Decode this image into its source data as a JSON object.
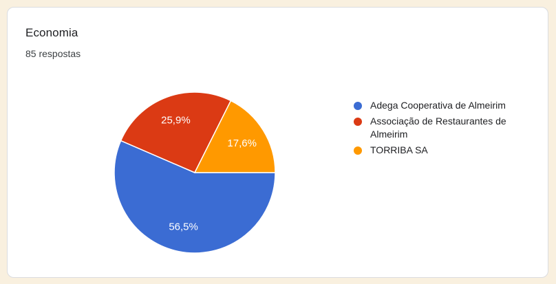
{
  "colors": {
    "page_background": "#F9F0DF",
    "card_background": "#FFFFFF",
    "card_border": "#DADCE0",
    "title_text": "#202124",
    "legend_text": "#202124",
    "slice_label_text": "#FFFFFF"
  },
  "chart_data": {
    "type": "pie",
    "title": "Economia",
    "subtitle": "85 respostas",
    "legend_position": "right",
    "start_angle_deg_clockwise_from_top": 90,
    "direction": "clockwise",
    "labels_inside_slices": true,
    "slices": [
      {
        "label": "Adega Cooperativa de Almeirim",
        "value_pct": 56.5,
        "display": "56,5%",
        "color": "#3B6CD3"
      },
      {
        "label": "Associação de Restaurantes de Almeirim",
        "value_pct": 25.9,
        "display": "25,9%",
        "color": "#DB3A14"
      },
      {
        "label": "TORRIBA SA",
        "value_pct": 17.6,
        "display": "17,6%",
        "color": "#FF9900"
      }
    ]
  }
}
